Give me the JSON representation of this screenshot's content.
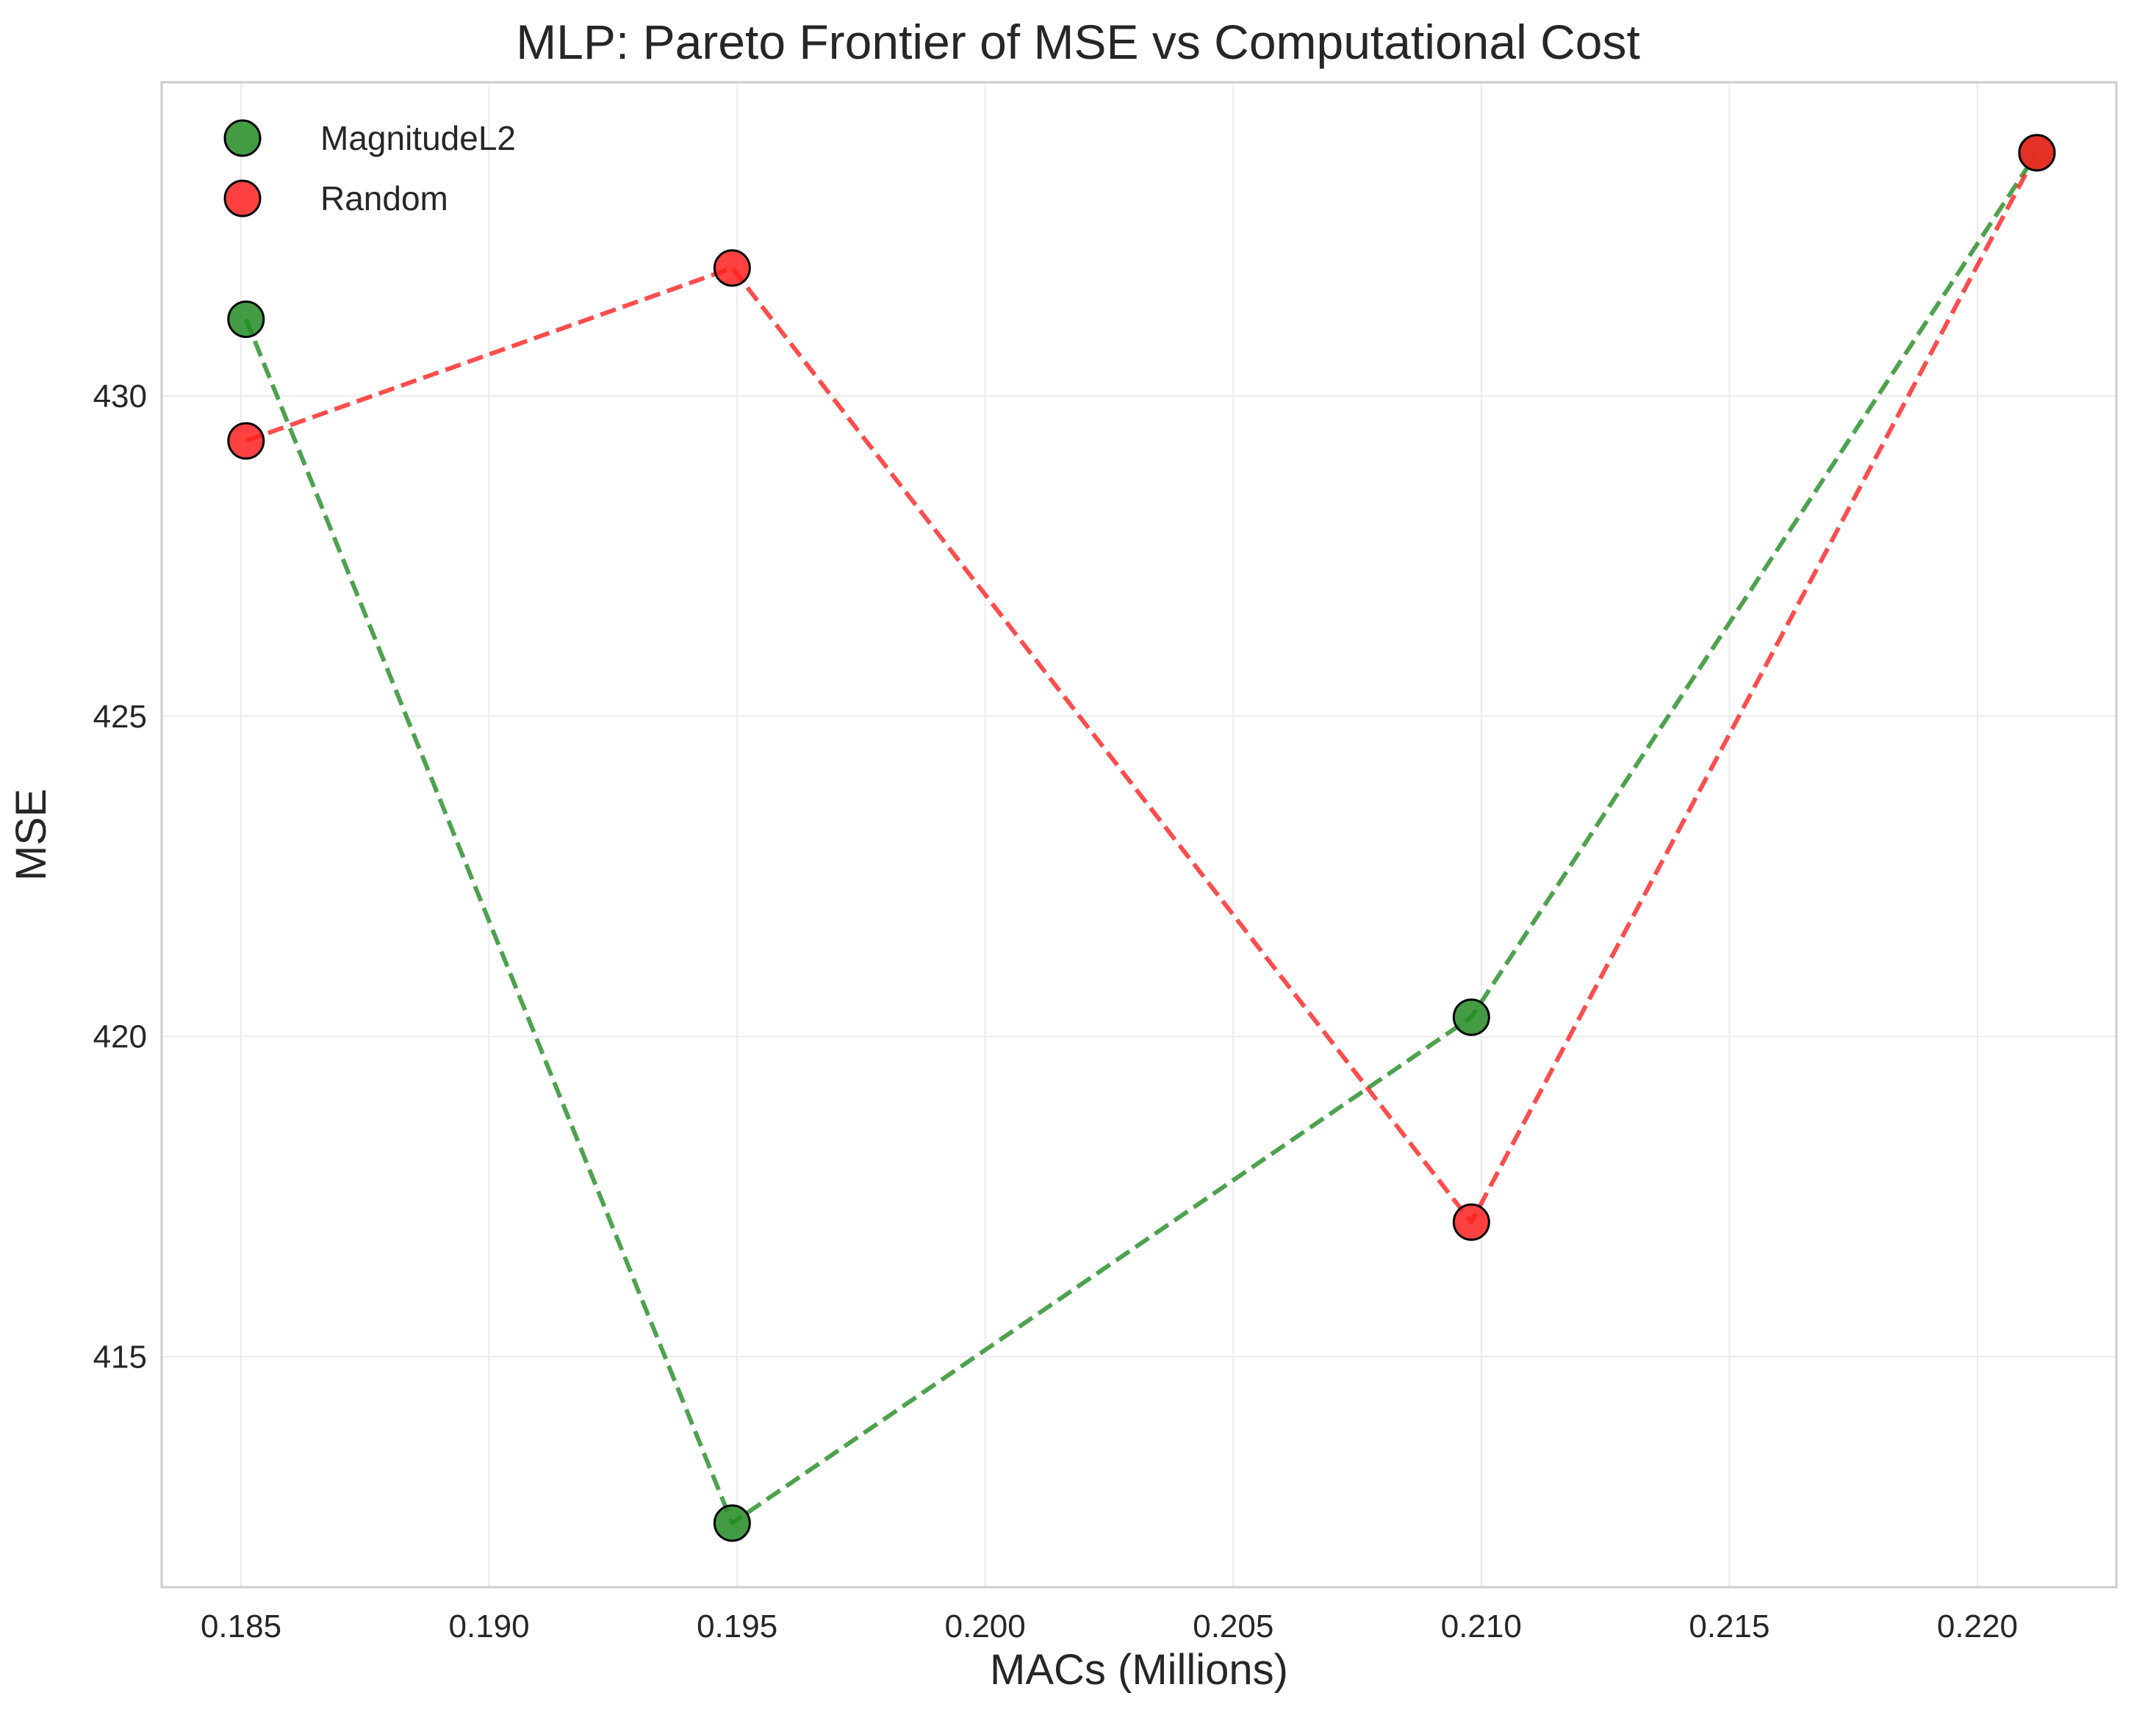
{
  "chart_data": {
    "type": "scatter",
    "title": "MLP: Pareto Frontier of MSE vs Computational Cost",
    "xlabel": "MACs (Millions)",
    "ylabel": "MSE",
    "xlim": [
      0.1834,
      0.2228
    ],
    "ylim": [
      411.4,
      434.9
    ],
    "xticks": [
      0.185,
      0.19,
      0.195,
      0.2,
      0.205,
      0.21,
      0.215,
      0.22
    ],
    "xtick_labels": [
      "0.185",
      "0.190",
      "0.195",
      "0.200",
      "0.205",
      "0.210",
      "0.215",
      "0.220"
    ],
    "yticks": [
      415,
      420,
      425,
      430
    ],
    "ytick_labels": [
      "415",
      "420",
      "425",
      "430"
    ],
    "grid": true,
    "legend_position": "top-left",
    "series": [
      {
        "name": "MagnitudeL2",
        "color": "#228b22",
        "line_style": "dashed",
        "points": [
          {
            "x": 0.1851,
            "y": 431.2
          },
          {
            "x": 0.1949,
            "y": 412.4
          },
          {
            "x": 0.2098,
            "y": 420.3
          },
          {
            "x": 0.2212,
            "y": 433.8
          }
        ]
      },
      {
        "name": "Random",
        "color": "#ff2020",
        "line_style": "dashed",
        "points": [
          {
            "x": 0.1851,
            "y": 429.3
          },
          {
            "x": 0.1949,
            "y": 432.0
          },
          {
            "x": 0.2098,
            "y": 417.1
          },
          {
            "x": 0.2212,
            "y": 433.8
          }
        ]
      }
    ]
  }
}
